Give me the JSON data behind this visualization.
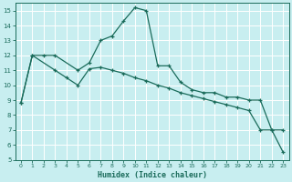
{
  "xlabel": "Humidex (Indice chaleur)",
  "bg_color": "#c8eef0",
  "grid_color": "#ffffff",
  "line_color": "#1a6b5a",
  "xlim": [
    -0.5,
    23.5
  ],
  "ylim": [
    5,
    15.5
  ],
  "yticks": [
    5,
    6,
    7,
    8,
    9,
    10,
    11,
    12,
    13,
    14,
    15
  ],
  "xticks": [
    0,
    1,
    2,
    3,
    4,
    5,
    6,
    7,
    8,
    9,
    10,
    11,
    12,
    13,
    14,
    15,
    16,
    17,
    18,
    19,
    20,
    21,
    22,
    23
  ],
  "line1_x": [
    0,
    1,
    2,
    3,
    5,
    6,
    7,
    8,
    9,
    10,
    11,
    12,
    13,
    14,
    15,
    16,
    17,
    18,
    19,
    20,
    21,
    22,
    23
  ],
  "line1_y": [
    8.8,
    12.0,
    12.0,
    12.0,
    11.0,
    11.5,
    13.0,
    13.3,
    14.3,
    15.2,
    15.0,
    11.3,
    11.3,
    10.2,
    9.7,
    9.5,
    9.5,
    9.2,
    9.2,
    9.0,
    9.0,
    7.0,
    7.0
  ],
  "line2_x": [
    0,
    1,
    3,
    4,
    5,
    6,
    7,
    8,
    9,
    10,
    11,
    12,
    13,
    14,
    15,
    16,
    17,
    18,
    19,
    20,
    21,
    22,
    23
  ],
  "line2_y": [
    8.8,
    12.0,
    11.0,
    10.5,
    10.0,
    11.1,
    11.2,
    11.0,
    10.8,
    10.5,
    10.3,
    10.0,
    9.8,
    9.5,
    9.3,
    9.1,
    8.9,
    8.7,
    8.5,
    8.3,
    7.0,
    7.0,
    5.5
  ]
}
